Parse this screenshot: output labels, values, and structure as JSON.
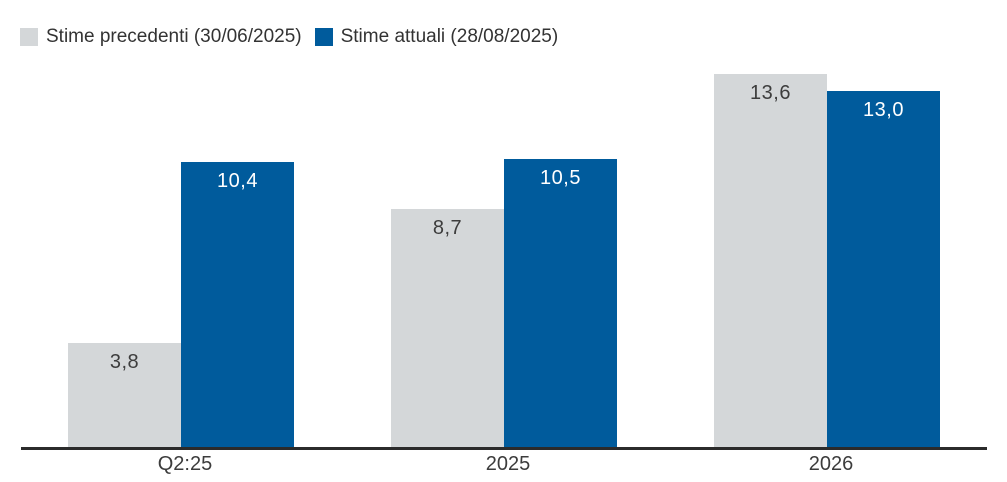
{
  "page": {
    "background": "#ffffff"
  },
  "legend": {
    "items": [
      {
        "label": "Stime precedenti (30/06/2025)",
        "color": "#d4d7d9"
      },
      {
        "label": "Stime attuali (28/08/2025)",
        "color": "#005b9c"
      }
    ]
  },
  "chart_data": {
    "type": "bar",
    "title": "",
    "xlabel": "",
    "ylabel": "",
    "categories": [
      "Q2:25",
      "2025",
      "2026"
    ],
    "series": [
      {
        "name": "Stime precedenti (30/06/2025)",
        "color": "#d4d7d9",
        "label_color": "#3d3d3d",
        "values": [
          3.8,
          8.7,
          13.6
        ],
        "value_labels": [
          "3,8",
          "8,7",
          "13,6"
        ]
      },
      {
        "name": "Stime attuali (28/08/2025)",
        "color": "#005b9c",
        "label_color": "#ffffff",
        "values": [
          10.4,
          10.5,
          13.0
        ],
        "value_labels": [
          "10,4",
          "10,5",
          "13,0"
        ]
      }
    ],
    "ylim": [
      0,
      14.2
    ],
    "grid": false,
    "legend_position": "top-left",
    "value_format": "comma-decimal",
    "axis_line_color": "#2b2b2b",
    "x_tick_color": "#3c3c3c"
  }
}
